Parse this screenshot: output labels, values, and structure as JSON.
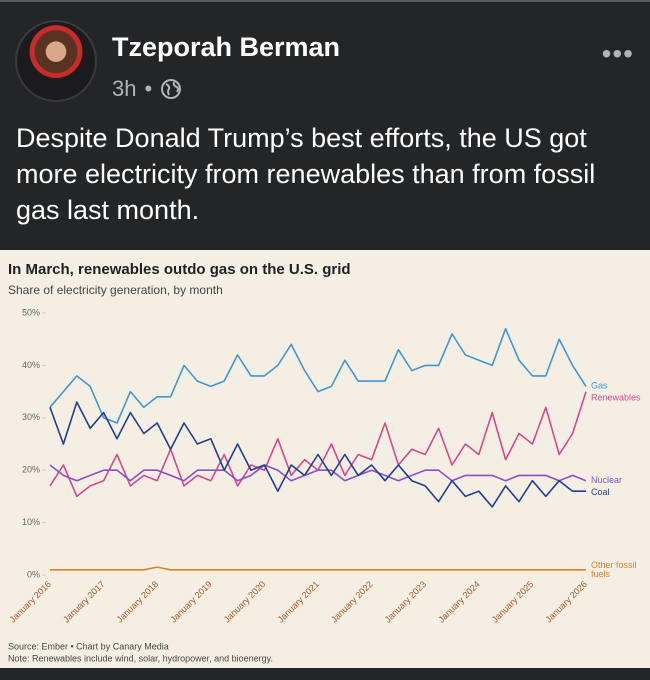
{
  "post": {
    "author": "Tzeporah Berman",
    "time": "3h",
    "text": "Despite Donald Trump’s best efforts, the US got more electricity from renewables than from fossil gas last month."
  },
  "chart_data": {
    "type": "line",
    "title": "In March, renewables outdo gas on the U.S. grid",
    "subtitle": "Share of electricity generation, by month",
    "source": "Source: Ember • Chart by Canary Media",
    "note": "Note: Renewables include wind, solar, hydropower, and bioenergy.",
    "categories": [
      "January 2016",
      null,
      null,
      null,
      "January 2017",
      null,
      null,
      null,
      "January 2018",
      null,
      null,
      null,
      "January 2019",
      null,
      null,
      null,
      "January 2020",
      null,
      null,
      null,
      "January 2021",
      null,
      null,
      null,
      "January 2022",
      null,
      null,
      null,
      "January 2023",
      null,
      null,
      null,
      "January 2024",
      null,
      null,
      null,
      "January 2025",
      null,
      null,
      null,
      "January 2026"
    ],
    "ylim": [
      0,
      50
    ],
    "yticks": [
      {
        "value": 0,
        "label": "0%"
      },
      {
        "value": 10,
        "label": "10%"
      },
      {
        "value": 20,
        "label": "20%"
      },
      {
        "value": 30,
        "label": "30%"
      },
      {
        "value": 40,
        "label": "40%"
      },
      {
        "value": 50,
        "label": "50%"
      }
    ],
    "series": [
      {
        "name": "Renewables",
        "color": "#d6488f",
        "values": [
          17,
          21,
          15,
          17,
          18,
          23,
          17,
          19,
          18,
          24,
          17,
          19,
          18,
          23,
          17,
          21,
          20,
          26,
          19,
          22,
          20,
          25,
          19,
          23,
          22,
          29,
          21,
          24,
          23,
          28,
          21,
          25,
          23,
          31,
          22,
          27,
          25,
          32,
          23,
          27,
          35
        ]
      },
      {
        "name": "Gas",
        "color": "#3f97d6",
        "values": [
          32,
          35,
          38,
          36,
          30,
          29,
          35,
          32,
          34,
          34,
          40,
          37,
          36,
          37,
          42,
          38,
          38,
          40,
          44,
          39,
          35,
          36,
          41,
          37,
          37,
          37,
          43,
          39,
          40,
          40,
          46,
          42,
          41,
          40,
          47,
          41,
          38,
          38,
          45,
          40,
          36
        ]
      },
      {
        "name": "Nuclear",
        "color": "#8c4fc9",
        "values": [
          21,
          19,
          18,
          19,
          20,
          20,
          18,
          20,
          20,
          19,
          18,
          20,
          20,
          20,
          18,
          19,
          21,
          20,
          18,
          19,
          20,
          20,
          18,
          19,
          20,
          19,
          18,
          19,
          20,
          20,
          18,
          19,
          19,
          19,
          18,
          19,
          19,
          19,
          18,
          19,
          18
        ]
      },
      {
        "name": "Coal",
        "color": "#1f3f8f",
        "values": [
          32,
          25,
          33,
          28,
          31,
          26,
          31,
          27,
          29,
          24,
          29,
          25,
          26,
          20,
          25,
          20,
          21,
          16,
          21,
          19,
          23,
          19,
          23,
          19,
          21,
          18,
          21,
          18,
          17,
          14,
          18,
          15,
          16,
          13,
          17,
          14,
          18,
          15,
          18,
          16,
          16
        ]
      },
      {
        "name": "Other fossil fuels",
        "color": "#d9822b",
        "values": [
          1,
          1,
          1,
          1,
          1,
          1,
          1,
          1,
          1.5,
          1,
          1,
          1,
          1,
          1,
          1,
          1,
          1,
          1,
          1,
          1,
          1,
          1,
          1,
          1,
          1,
          1,
          1,
          1,
          1,
          1,
          1,
          1,
          1,
          1,
          1,
          1,
          1,
          1,
          1,
          1,
          1
        ]
      }
    ]
  }
}
